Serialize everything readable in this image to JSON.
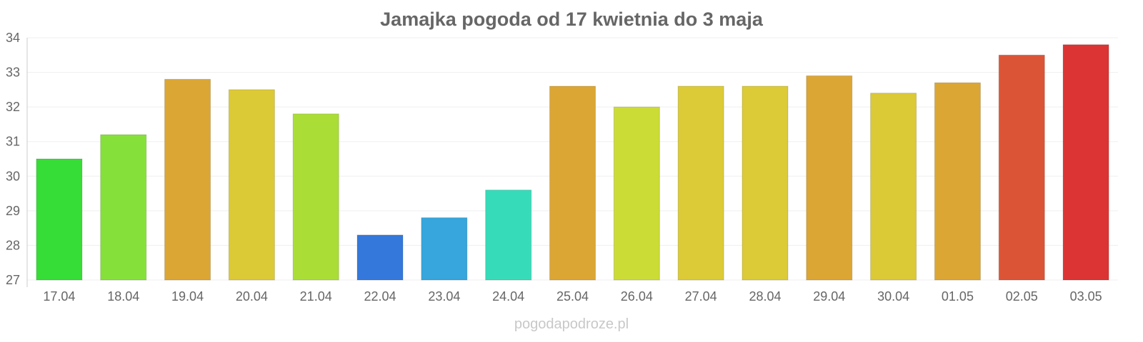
{
  "chart_data": {
    "type": "bar",
    "title": "Jamajka pogoda od 17 kwietnia do 3 maja",
    "xlabel": "",
    "ylabel": "",
    "ylim": [
      27,
      34
    ],
    "yticks": [
      27,
      28,
      29,
      30,
      31,
      32,
      33,
      34
    ],
    "grid": true,
    "categories": [
      "17.04",
      "18.04",
      "19.04",
      "20.04",
      "21.04",
      "22.04",
      "23.04",
      "24.04",
      "25.04",
      "26.04",
      "27.04",
      "28.04",
      "29.04",
      "30.04",
      "01.05",
      "02.05",
      "03.05"
    ],
    "values": [
      30.5,
      31.2,
      32.8,
      32.5,
      31.8,
      28.3,
      28.8,
      29.6,
      32.6,
      32.0,
      32.6,
      32.6,
      32.9,
      32.4,
      32.7,
      33.5,
      33.8
    ],
    "colors": [
      "#36dd36",
      "#86e03a",
      "#dca634",
      "#dcc936",
      "#aade36",
      "#3578dc",
      "#36a6dc",
      "#36dcb9",
      "#dca634",
      "#ccdc36",
      "#dccb36",
      "#dccb36",
      "#dca634",
      "#dcc936",
      "#dca634",
      "#dc5436",
      "#dc3434"
    ]
  },
  "watermark": "pogodapodroze.pl"
}
